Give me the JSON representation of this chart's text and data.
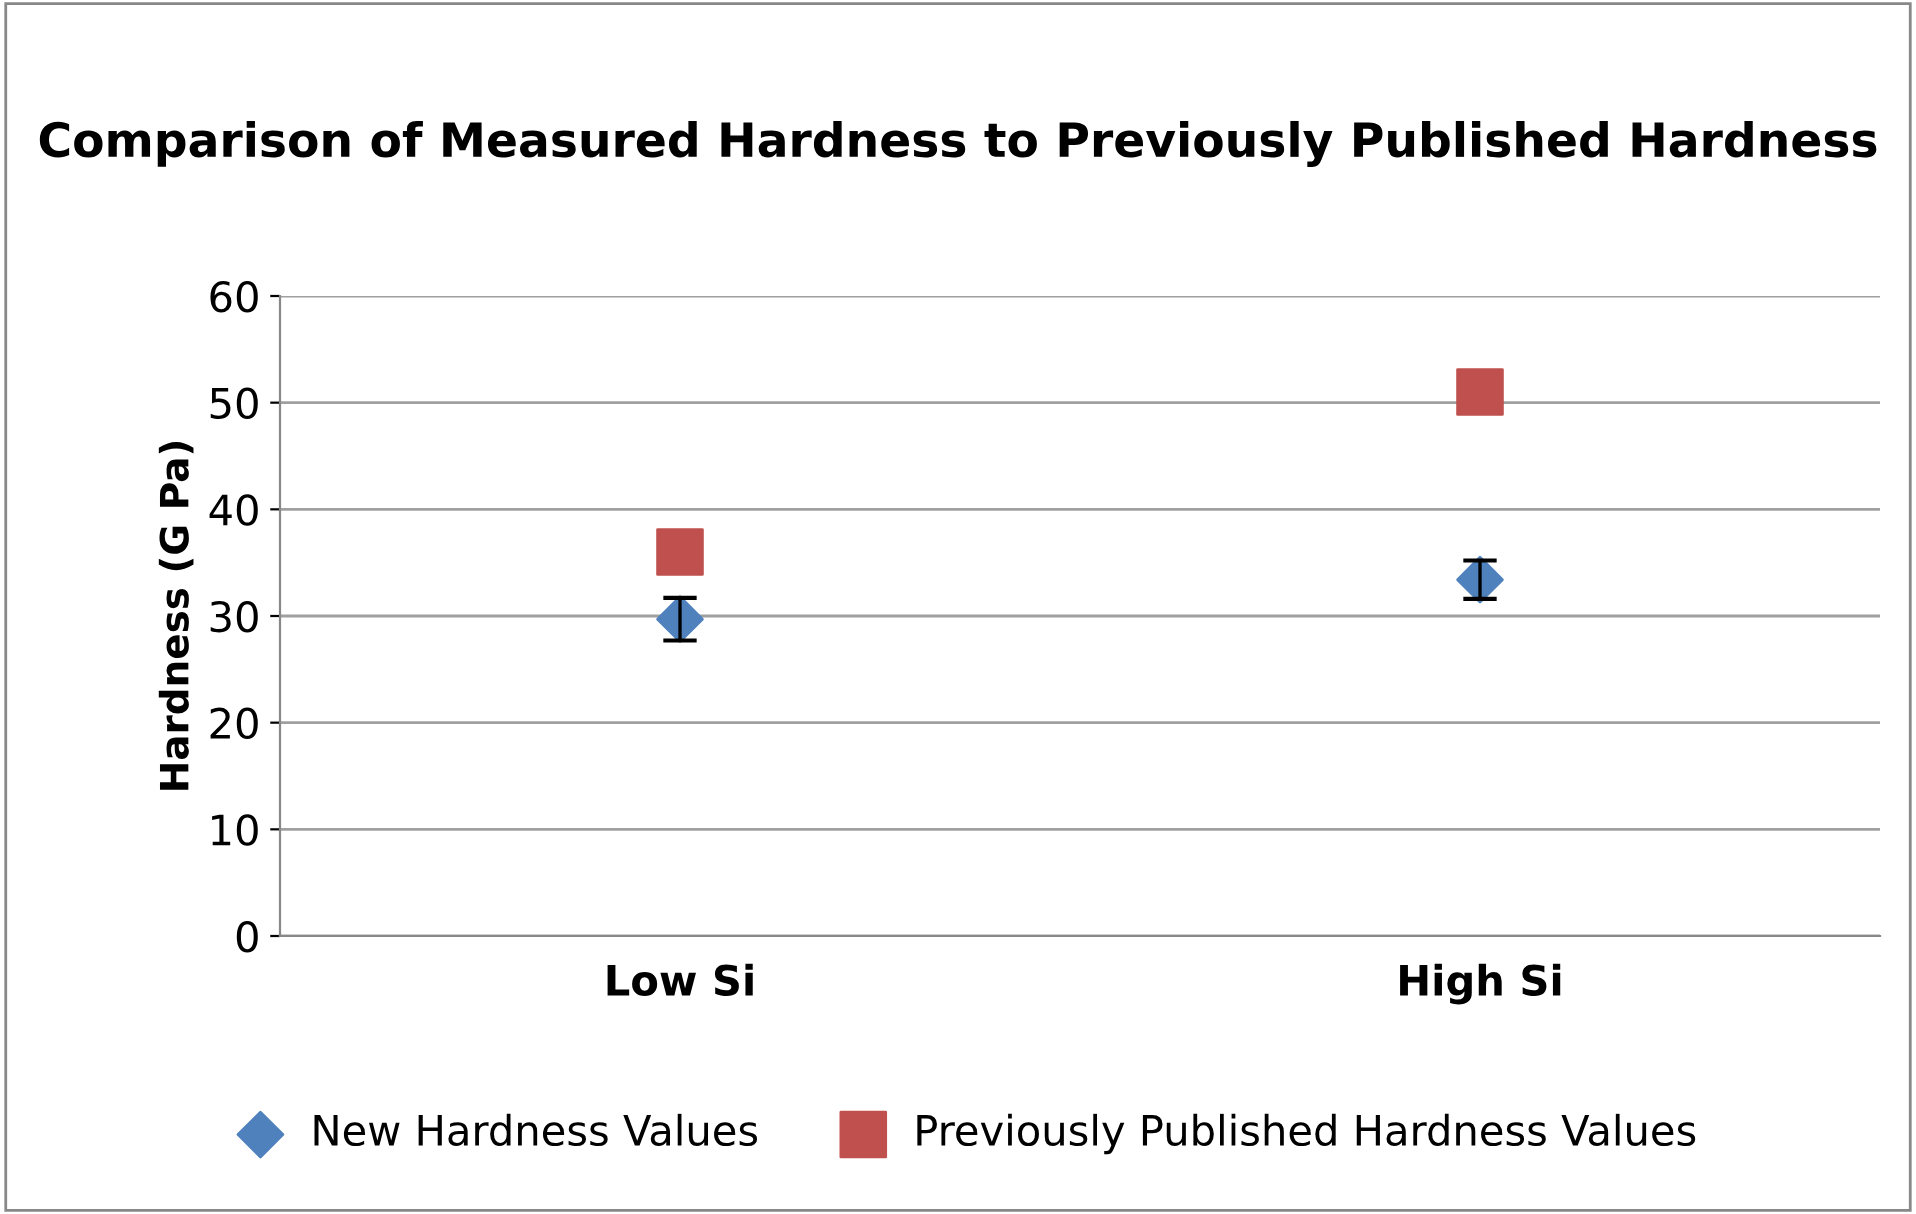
{
  "chart_data": {
    "type": "scatter",
    "title": "Comparison of Measured Hardness to Previously Published Hardness",
    "ylabel": "Hardness (G Pa)",
    "categories": [
      "Low Si",
      "High Si"
    ],
    "series": [
      {
        "name": "New Hardness Values",
        "color": "#4f81bd",
        "marker": "diamond",
        "values": [
          29.7,
          33.4
        ],
        "errors": [
          2,
          1.8
        ]
      },
      {
        "name": "Previously Published Hardness Values",
        "color": "#c0504d",
        "marker": "square",
        "values": [
          36,
          51
        ]
      }
    ],
    "ylim": [
      0,
      60
    ],
    "yticks": [
      0,
      10,
      20,
      30,
      40,
      50,
      60
    ],
    "grid": "y",
    "legend": "bottom"
  }
}
